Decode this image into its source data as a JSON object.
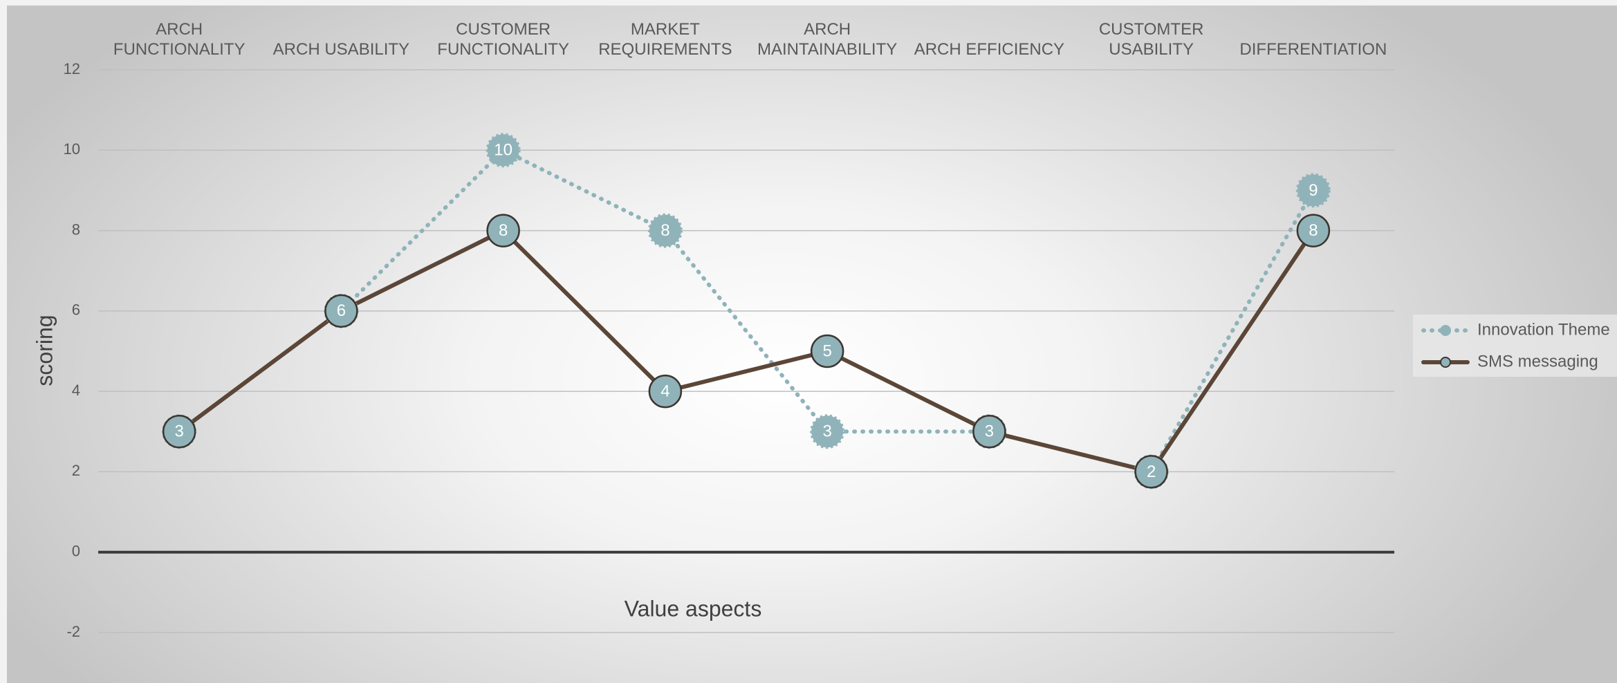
{
  "chart_data": {
    "type": "line",
    "categories": [
      "ARCH FUNCTIONALITY",
      "ARCH USABILITY",
      "CUSTOMER FUNCTIONALITY",
      "MARKET REQUIREMENTS",
      "ARCH MAINTAINABILITY",
      "ARCH EFFICIENCY",
      "CUSTOMTER USABILITY",
      "DIFFERENTIATION"
    ],
    "series": [
      {
        "name": "Innovation Theme",
        "color": "#8fb3b9",
        "values": [
          3,
          6,
          10,
          8,
          3,
          3,
          2,
          9
        ]
      },
      {
        "name": "SMS messaging",
        "color": "#5b4637",
        "values": [
          3,
          6,
          8,
          4,
          5,
          3,
          2,
          8
        ]
      }
    ],
    "xlabel": "Value aspects",
    "ylabel": "scoring",
    "ylim": [
      -2,
      12
    ],
    "yticks": [
      -2,
      0,
      2,
      4,
      6,
      8,
      10,
      12
    ],
    "grid": true,
    "legend": "right"
  }
}
